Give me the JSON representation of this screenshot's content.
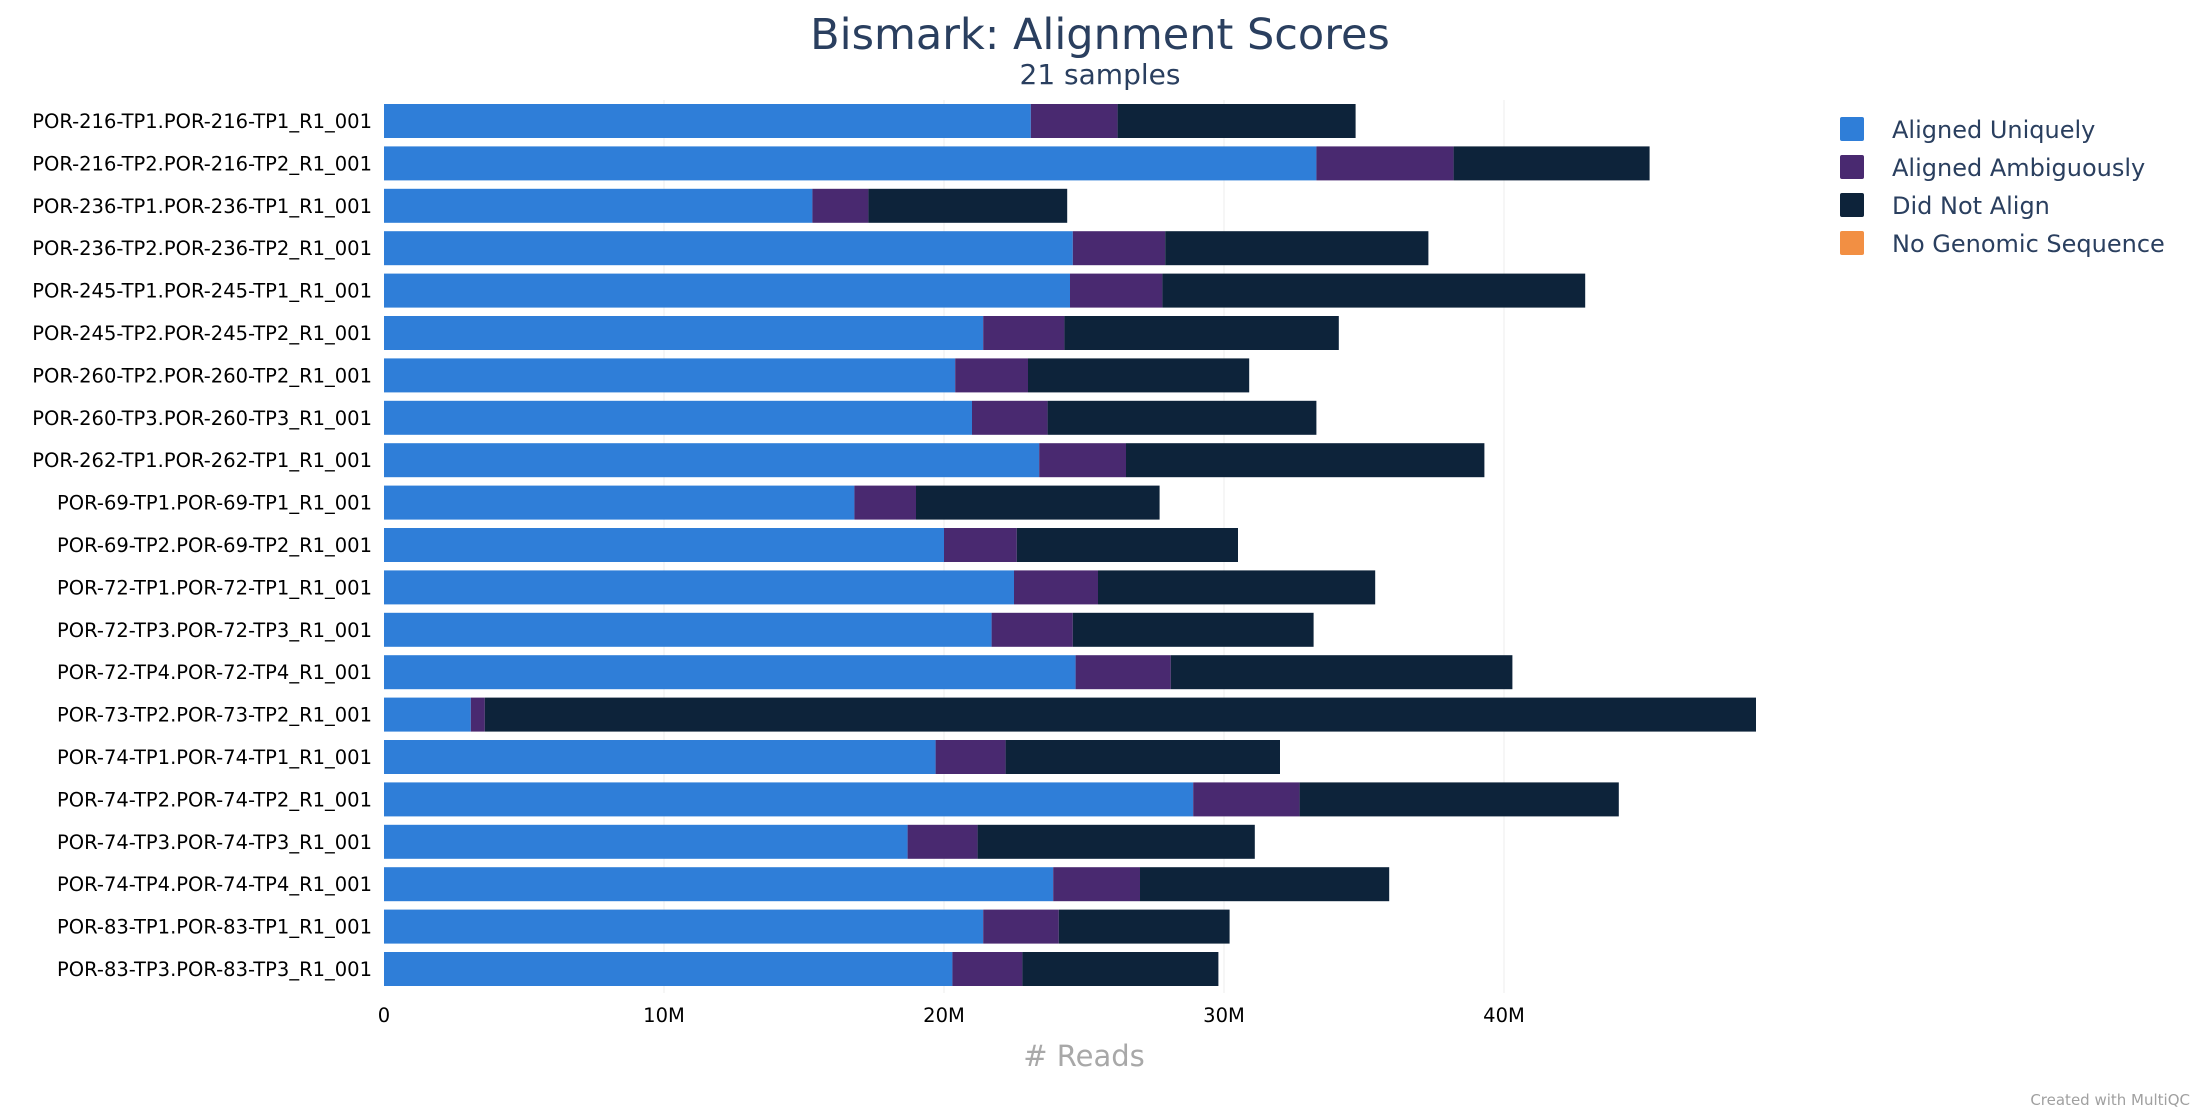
{
  "chart_data": {
    "type": "bar",
    "orientation": "horizontal",
    "stacked": true,
    "title": "Bismark: Alignment Scores",
    "subtitle": "21 samples",
    "xlabel": "# Reads",
    "ylabel": "",
    "xlim": [
      0,
      50000000
    ],
    "x_ticks": [
      {
        "value": 0,
        "label": "0"
      },
      {
        "value": 10000000,
        "label": "10M"
      },
      {
        "value": 20000000,
        "label": "20M"
      },
      {
        "value": 30000000,
        "label": "30M"
      },
      {
        "value": 40000000,
        "label": "40M"
      }
    ],
    "grid": "vertical",
    "legend_position": "top-right",
    "categories": [
      "POR-216-TP1.POR-216-TP1_R1_001",
      "POR-216-TP2.POR-216-TP2_R1_001",
      "POR-236-TP1.POR-236-TP1_R1_001",
      "POR-236-TP2.POR-236-TP2_R1_001",
      "POR-245-TP1.POR-245-TP1_R1_001",
      "POR-245-TP2.POR-245-TP2_R1_001",
      "POR-260-TP2.POR-260-TP2_R1_001",
      "POR-260-TP3.POR-260-TP3_R1_001",
      "POR-262-TP1.POR-262-TP1_R1_001",
      "POR-69-TP1.POR-69-TP1_R1_001",
      "POR-69-TP2.POR-69-TP2_R1_001",
      "POR-72-TP1.POR-72-TP1_R1_001",
      "POR-72-TP3.POR-72-TP3_R1_001",
      "POR-72-TP4.POR-72-TP4_R1_001",
      "POR-73-TP2.POR-73-TP2_R1_001",
      "POR-74-TP1.POR-74-TP1_R1_001",
      "POR-74-TP2.POR-74-TP2_R1_001",
      "POR-74-TP3.POR-74-TP3_R1_001",
      "POR-74-TP4.POR-74-TP4_R1_001",
      "POR-83-TP1.POR-83-TP1_R1_001",
      "POR-83-TP3.POR-83-TP3_R1_001"
    ],
    "series": [
      {
        "name": "Aligned Uniquely",
        "color": "#2f7ed8",
        "values": [
          23100000,
          33300000,
          15300000,
          24600000,
          24500000,
          21400000,
          20400000,
          21000000,
          23400000,
          16800000,
          20000000,
          22500000,
          21700000,
          24700000,
          3100000,
          19700000,
          28900000,
          18700000,
          23900000,
          21400000,
          20300000
        ]
      },
      {
        "name": "Aligned Ambiguously",
        "color": "#492970",
        "values": [
          3100000,
          4900000,
          2000000,
          3300000,
          3300000,
          2900000,
          2600000,
          2700000,
          3100000,
          2200000,
          2600000,
          3000000,
          2900000,
          3400000,
          500000,
          2500000,
          3800000,
          2500000,
          3100000,
          2700000,
          2500000
        ]
      },
      {
        "name": "Did Not Align",
        "color": "#0d233a",
        "values": [
          8500000,
          7000000,
          7100000,
          9400000,
          15100000,
          9800000,
          7900000,
          9600000,
          12800000,
          8700000,
          7900000,
          9900000,
          8600000,
          12200000,
          45400000,
          9800000,
          11400000,
          9900000,
          8900000,
          6100000,
          7000000
        ]
      },
      {
        "name": "No Genomic Sequence",
        "color": "#f28f43",
        "values": [
          0,
          0,
          0,
          0,
          0,
          0,
          0,
          0,
          0,
          0,
          0,
          0,
          0,
          0,
          0,
          0,
          0,
          0,
          0,
          0,
          0
        ]
      }
    ]
  },
  "credit": "Created with MultiQC"
}
